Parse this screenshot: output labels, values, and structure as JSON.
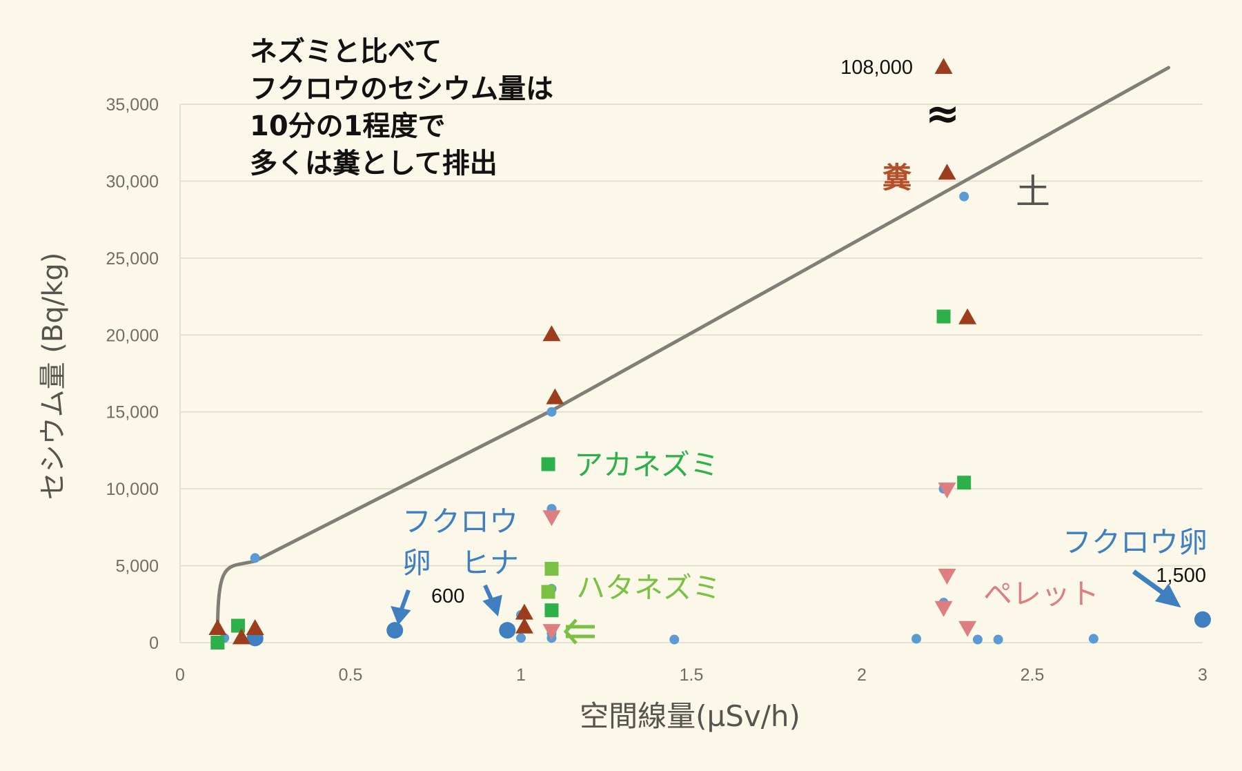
{
  "chart_data": {
    "type": "scatter",
    "title": "",
    "annotation_main": [
      "ネズミと比べて",
      "フクロウのセシウム量は",
      "10分の1程度で",
      "多くは糞として排出"
    ],
    "xlabel": "空間線量(µSv/h)",
    "ylabel": "セシウム量 (Bq/kg)",
    "xlim": [
      0,
      3
    ],
    "ylim": [
      0,
      35000
    ],
    "x_ticks": [
      "0",
      "0.5",
      "1",
      "1.5",
      "2",
      "2.5",
      "3"
    ],
    "y_ticks": [
      "0",
      "5,000",
      "10,000",
      "15,000",
      "20,000",
      "25,000",
      "30,000",
      "35,000"
    ],
    "grid": true,
    "legend": "none (inline labels)",
    "series": [
      {
        "name": "土",
        "marker": "circle-small",
        "color": "#5b9bd5",
        "points": [
          [
            0.13,
            300
          ],
          [
            0.22,
            5500
          ],
          [
            0.23,
            200
          ],
          [
            1.0,
            1800
          ],
          [
            1.0,
            300
          ],
          [
            1.09,
            15000
          ],
          [
            1.09,
            8700
          ],
          [
            1.09,
            3500
          ],
          [
            1.09,
            600
          ],
          [
            1.09,
            300
          ],
          [
            1.45,
            200
          ],
          [
            2.16,
            250
          ],
          [
            2.24,
            10000
          ],
          [
            2.24,
            2600
          ],
          [
            2.3,
            29000
          ],
          [
            2.34,
            200
          ],
          [
            2.4,
            200
          ],
          [
            2.68,
            250
          ]
        ]
      },
      {
        "name": "フクロウ卵",
        "marker": "circle-large",
        "color": "#3f7fc0",
        "points": [
          [
            0.22,
            300
          ],
          [
            0.63,
            800
          ],
          [
            0.96,
            800
          ],
          [
            3.0,
            1500
          ]
        ]
      },
      {
        "name": "アカネズミ",
        "marker": "square",
        "color": "#2bb04a",
        "points": [
          [
            0.11,
            0
          ],
          [
            0.17,
            1100
          ],
          [
            1.08,
            11600
          ],
          [
            1.09,
            2100
          ],
          [
            2.24,
            21200
          ],
          [
            2.3,
            10400
          ]
        ]
      },
      {
        "name": "ハタネズミ",
        "marker": "square",
        "color": "#7ac143",
        "points": [
          [
            1.09,
            4800
          ],
          [
            1.08,
            3300
          ]
        ]
      },
      {
        "name": "糞",
        "marker": "triangle-up",
        "color": "#9c3d1e",
        "points": [
          [
            0.11,
            900
          ],
          [
            0.18,
            300
          ],
          [
            0.22,
            900
          ],
          [
            1.01,
            1900
          ],
          [
            1.01,
            1000
          ],
          [
            1.09,
            20000
          ],
          [
            1.1,
            15900
          ],
          [
            2.25,
            30500
          ],
          [
            2.31,
            21100
          ],
          [
            2.24,
            108000
          ]
        ]
      },
      {
        "name": "ペレット",
        "marker": "triangle-down",
        "color": "#dd7f80",
        "points": [
          [
            1.09,
            8200
          ],
          [
            1.09,
            800
          ],
          [
            2.25,
            10000
          ],
          [
            2.25,
            4400
          ],
          [
            2.24,
            2300
          ],
          [
            2.31,
            1000
          ]
        ]
      }
    ],
    "fit_line": {
      "name": "土 trend",
      "color": "#7f7f78",
      "points": [
        [
          0.11,
          600
        ],
        [
          0.14,
          3800
        ],
        [
          0.22,
          5300
        ],
        [
          1.1,
          15200
        ],
        [
          2.9,
          36200
        ]
      ]
    },
    "annotations": [
      {
        "text": "108,000",
        "x": 2.1,
        "y": 37200,
        "note": "off-scale value for 糞 point"
      },
      {
        "text": "≈",
        "note": "axis break symbol"
      },
      {
        "text": "600",
        "note": "フクロウ卵/ヒナ value"
      },
      {
        "text": "1,500",
        "note": "フクロウ卵 at x=3"
      }
    ]
  },
  "labels": {
    "fun_big": "糞",
    "soil": "土",
    "akanezumi": "アカネズミ",
    "hatanezumi": "ハタネズミ",
    "owl_line1": "フクロウ",
    "owl_egg": "卵",
    "owl_chick": "ヒナ",
    "owl_egg_right": "フクロウ卵",
    "pellet": "ペレット",
    "v108000": "108,000",
    "v600": "600",
    "v1500": "1,500",
    "break": "≈"
  },
  "colors": {
    "background": "#fcf8e9",
    "grid": "#e4e0cf",
    "axis_text": "#6f6e66",
    "soil": "#5b9bd5",
    "owl": "#3f7fc0",
    "akanezumi": "#2bb04a",
    "hatanezumi": "#7ac143",
    "feces": "#9c3d1e",
    "pellet": "#dd7f80",
    "line": "#7f7f78",
    "soil_label": "#55544f",
    "feces_label": "#b5502a"
  }
}
